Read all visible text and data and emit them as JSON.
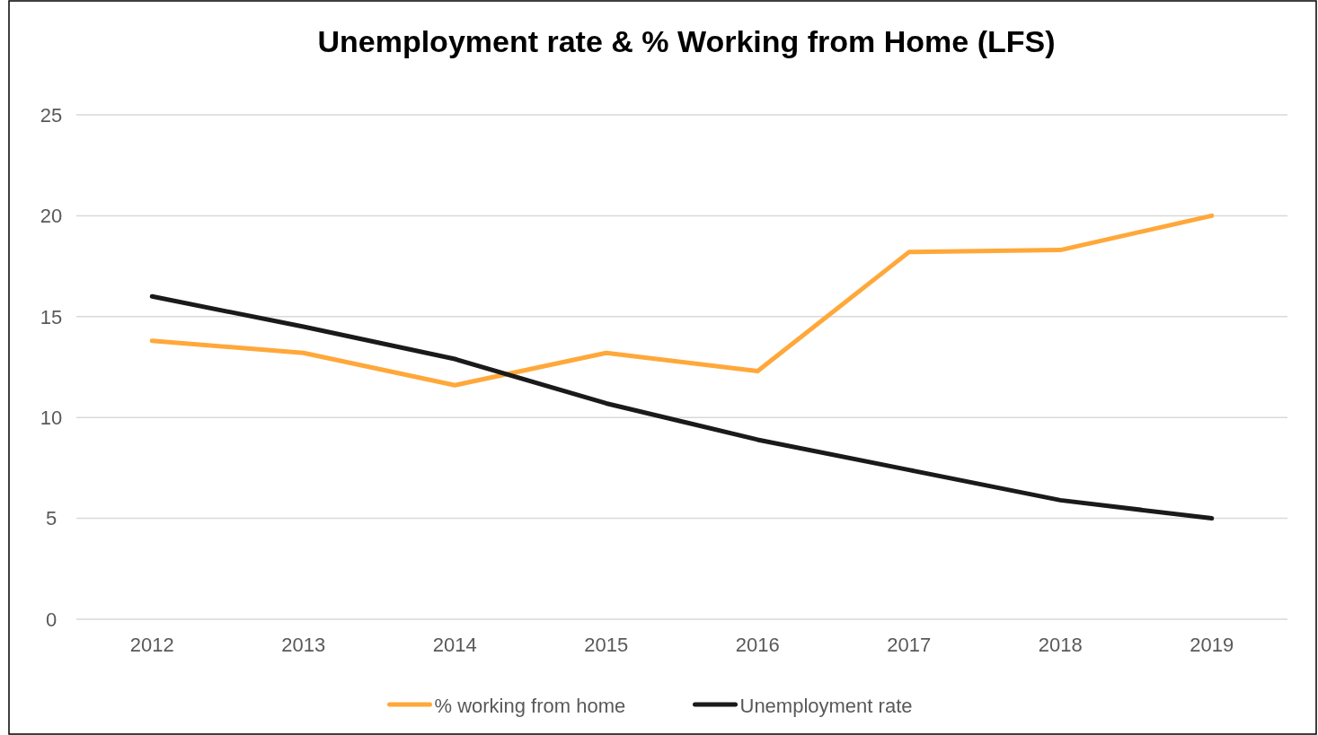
{
  "chart_data": {
    "type": "line",
    "title": "Unemployment rate & % Working from Home (LFS)",
    "categories": [
      "2012",
      "2013",
      "2014",
      "2015",
      "2016",
      "2017",
      "2018",
      "2019"
    ],
    "series": [
      {
        "name": "% working from home",
        "color": "#ffa83a",
        "values": [
          13.8,
          13.2,
          11.6,
          13.2,
          12.3,
          18.2,
          18.3,
          20.0
        ]
      },
      {
        "name": "Unemployment rate",
        "color": "#1a1a1a",
        "values": [
          16.0,
          14.5,
          12.9,
          10.7,
          8.9,
          7.4,
          5.9,
          5.0
        ]
      }
    ],
    "ylim": [
      0,
      25
    ],
    "yticks": [
      0,
      5,
      10,
      15,
      20,
      25
    ],
    "grid": "y",
    "legend": "bottom",
    "marker": "none",
    "line_style": "solid"
  }
}
